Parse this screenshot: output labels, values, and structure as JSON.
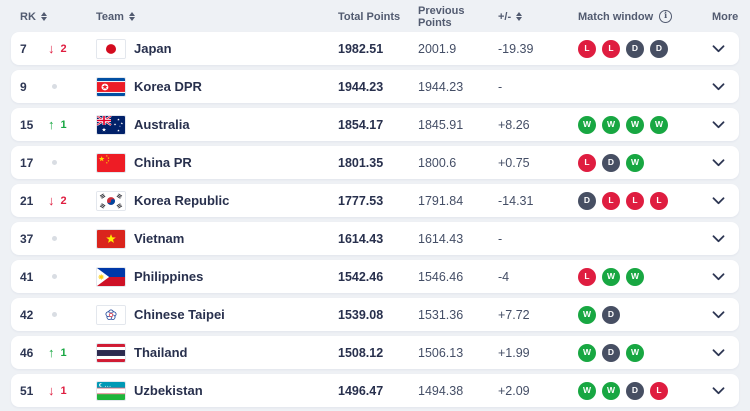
{
  "header": {
    "columns": {
      "rk": "RK",
      "team": "Team",
      "total_points": "Total Points",
      "previous_points": "Previous Points",
      "plus_minus": "+/-",
      "match_window": "Match window",
      "more": "More"
    },
    "info_icon": "info-icon"
  },
  "colors": {
    "win": "#18a742",
    "loss": "#df1d40",
    "draw": "#474f63",
    "background": "#eef1f5",
    "card": "#ffffff",
    "text_dark": "#28304d",
    "text_muted": "#525b70"
  },
  "rows": [
    {
      "rk": "7",
      "change_dir": "down",
      "change": "2",
      "team": "Japan",
      "flag": "japan",
      "total": "1982.51",
      "previous": "2001.9",
      "diff": "-19.39",
      "match_window": [
        "L",
        "L",
        "D",
        "D"
      ]
    },
    {
      "rk": "9",
      "change_dir": "none",
      "change": "",
      "team": "Korea DPR",
      "flag": "korea-dpr",
      "total": "1944.23",
      "previous": "1944.23",
      "diff": "-",
      "match_window": []
    },
    {
      "rk": "15",
      "change_dir": "up",
      "change": "1",
      "team": "Australia",
      "flag": "australia",
      "total": "1854.17",
      "previous": "1845.91",
      "diff": "+8.26",
      "match_window": [
        "W",
        "W",
        "W",
        "W"
      ]
    },
    {
      "rk": "17",
      "change_dir": "none",
      "change": "",
      "team": "China PR",
      "flag": "china-pr",
      "total": "1801.35",
      "previous": "1800.6",
      "diff": "+0.75",
      "match_window": [
        "L",
        "D",
        "W"
      ]
    },
    {
      "rk": "21",
      "change_dir": "down",
      "change": "2",
      "team": "Korea Republic",
      "flag": "korea-republic",
      "total": "1777.53",
      "previous": "1791.84",
      "diff": "-14.31",
      "match_window": [
        "D",
        "L",
        "L",
        "L"
      ]
    },
    {
      "rk": "37",
      "change_dir": "none",
      "change": "",
      "team": "Vietnam",
      "flag": "vietnam",
      "total": "1614.43",
      "previous": "1614.43",
      "diff": "-",
      "match_window": []
    },
    {
      "rk": "41",
      "change_dir": "none",
      "change": "",
      "team": "Philippines",
      "flag": "philippines",
      "total": "1542.46",
      "previous": "1546.46",
      "diff": "-4",
      "match_window": [
        "L",
        "W",
        "W"
      ]
    },
    {
      "rk": "42",
      "change_dir": "none",
      "change": "",
      "team": "Chinese Taipei",
      "flag": "chinese-taipei",
      "total": "1539.08",
      "previous": "1531.36",
      "diff": "+7.72",
      "match_window": [
        "W",
        "D"
      ]
    },
    {
      "rk": "46",
      "change_dir": "up",
      "change": "1",
      "team": "Thailand",
      "flag": "thailand",
      "total": "1508.12",
      "previous": "1506.13",
      "diff": "+1.99",
      "match_window": [
        "W",
        "D",
        "W"
      ]
    },
    {
      "rk": "51",
      "change_dir": "down",
      "change": "1",
      "team": "Uzbekistan",
      "flag": "uzbekistan",
      "total": "1496.47",
      "previous": "1494.38",
      "diff": "+2.09",
      "match_window": [
        "W",
        "W",
        "D",
        "L"
      ]
    }
  ]
}
